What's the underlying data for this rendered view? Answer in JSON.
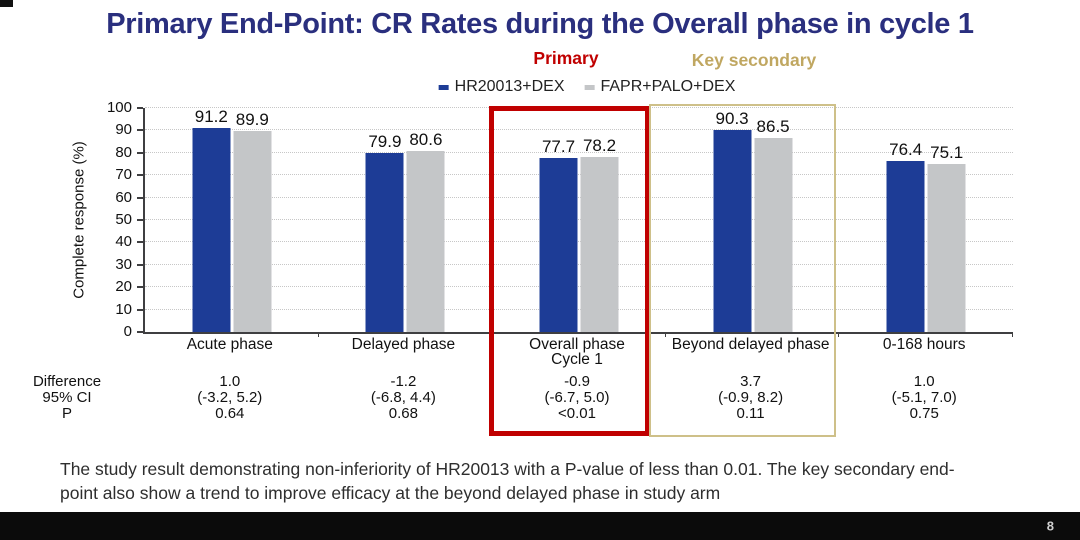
{
  "slide": {
    "title": "Primary End-Point: CR Rates during the Overall phase in cycle 1",
    "title_color": "#2a2f7e",
    "footer_text": "The study result demonstrating non-inferiority of HR20013 with a P-value of less than 0.01. The key secondary end-point also show a trend to improve efficacy at the beyond delayed phase in study arm",
    "page_number": "8"
  },
  "annotations": {
    "primary_label": "Primary",
    "primary_color": "#c00000",
    "key_secondary_label": "Key secondary",
    "key_secondary_color": "#c0a761"
  },
  "chart_data": {
    "type": "bar",
    "title": "",
    "xlabel": "",
    "ylabel": "Complete response (%)",
    "ylim": [
      0,
      100
    ],
    "ytick_step": 10,
    "grid": "dotted-horizontal",
    "legend_position": "top-center",
    "categories": [
      "Acute phase",
      "Delayed phase",
      "Overall phase\nCycle 1",
      "Beyond delayed phase",
      "0-168 hours"
    ],
    "series": [
      {
        "name": "HR20013+DEX",
        "color": "#1d3c96",
        "values": [
          91.2,
          79.9,
          77.7,
          90.3,
          76.4
        ]
      },
      {
        "name": "FAPR+PALO+DEX",
        "color": "#c4c6c8",
        "values": [
          89.9,
          80.6,
          78.2,
          86.5,
          75.1
        ]
      }
    ],
    "stats_rows": [
      {
        "label": "Difference",
        "values": [
          "1.0",
          "-1.2",
          "-0.9",
          "3.7",
          "1.0"
        ]
      },
      {
        "label": "95% CI",
        "values": [
          "(-3.2, 5.2)",
          "(-6.8, 4.4)",
          "(-6.7, 5.0)",
          "(-0.9, 8.2)",
          "(-5.1, 7.0)"
        ]
      },
      {
        "label": "P",
        "values": [
          "0.64",
          "0.68",
          "<0.01",
          "0.11",
          "0.75"
        ]
      }
    ],
    "highlights": [
      {
        "label": "Primary",
        "category_index": 2,
        "color": "#c00000",
        "emphasis": "strong"
      },
      {
        "label": "Key secondary",
        "category_index": 3,
        "color": "#cec089",
        "emphasis": "light"
      }
    ]
  }
}
